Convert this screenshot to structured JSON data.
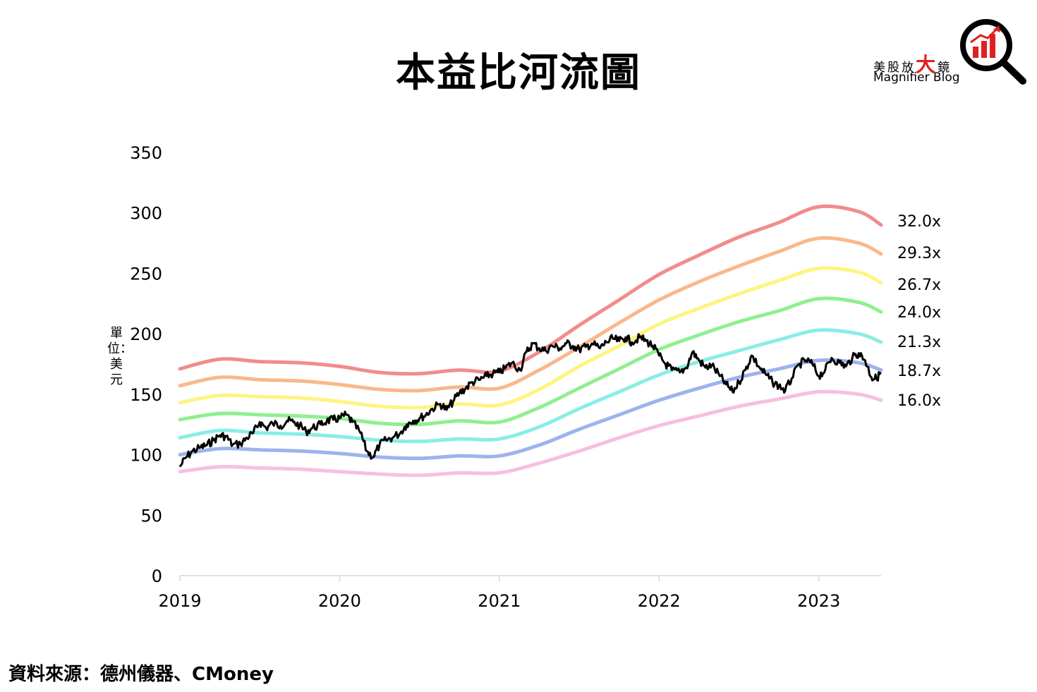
{
  "title": "本益比河流圖",
  "source": "資料來源：德州儀器、CMoney",
  "y_unit_label": "單位：美元",
  "logo": {
    "text_cn_parts": [
      "美股放",
      "大",
      "鏡"
    ],
    "text_en": "Magnifier Blog",
    "icon": "magnifier-bar-chart-icon",
    "accent_color": "#e02020"
  },
  "chart_data": {
    "type": "line",
    "title": "本益比河流圖",
    "ylabel": "單位：美元",
    "xlabel": "",
    "x_ticks": [
      "2019",
      "2020",
      "2021",
      "2022",
      "2023"
    ],
    "y_ticks": [
      0,
      50,
      100,
      150,
      200,
      250,
      300,
      350
    ],
    "ylim": [
      0,
      350
    ],
    "xlim": [
      2019.0,
      2023.39
    ],
    "grid": false,
    "bands": [
      {
        "name": "32.0x",
        "color": "#f28b8b",
        "points": [
          [
            2019.0,
            171
          ],
          [
            2019.25,
            179
          ],
          [
            2019.5,
            177
          ],
          [
            2019.75,
            176
          ],
          [
            2020.0,
            173
          ],
          [
            2020.25,
            168
          ],
          [
            2020.5,
            167
          ],
          [
            2020.75,
            170
          ],
          [
            2021.0,
            169
          ],
          [
            2021.25,
            185
          ],
          [
            2021.5,
            207
          ],
          [
            2021.75,
            228
          ],
          [
            2022.0,
            249
          ],
          [
            2022.25,
            265
          ],
          [
            2022.5,
            280
          ],
          [
            2022.75,
            292
          ],
          [
            2023.0,
            305
          ],
          [
            2023.25,
            301
          ],
          [
            2023.39,
            290
          ]
        ]
      },
      {
        "name": "29.3x",
        "color": "#f9b88b",
        "points": [
          [
            2019.0,
            157
          ],
          [
            2019.25,
            164
          ],
          [
            2019.5,
            162
          ],
          [
            2019.75,
            161
          ],
          [
            2020.0,
            158
          ],
          [
            2020.25,
            154
          ],
          [
            2020.5,
            153
          ],
          [
            2020.75,
            156
          ],
          [
            2021.0,
            155
          ],
          [
            2021.25,
            170
          ],
          [
            2021.5,
            189
          ],
          [
            2021.75,
            209
          ],
          [
            2022.0,
            228
          ],
          [
            2022.25,
            243
          ],
          [
            2022.5,
            256
          ],
          [
            2022.75,
            268
          ],
          [
            2023.0,
            279
          ],
          [
            2023.25,
            275
          ],
          [
            2023.39,
            266
          ]
        ]
      },
      {
        "name": "26.7x",
        "color": "#fdf57f",
        "points": [
          [
            2019.0,
            143
          ],
          [
            2019.25,
            149
          ],
          [
            2019.5,
            148
          ],
          [
            2019.75,
            147
          ],
          [
            2020.0,
            144
          ],
          [
            2020.25,
            140
          ],
          [
            2020.5,
            139
          ],
          [
            2020.75,
            142
          ],
          [
            2021.0,
            141
          ],
          [
            2021.25,
            154
          ],
          [
            2021.5,
            173
          ],
          [
            2021.75,
            190
          ],
          [
            2022.0,
            208
          ],
          [
            2022.25,
            221
          ],
          [
            2022.5,
            233
          ],
          [
            2022.75,
            244
          ],
          [
            2023.0,
            254
          ],
          [
            2023.25,
            251
          ],
          [
            2023.39,
            242
          ]
        ]
      },
      {
        "name": "24.0x",
        "color": "#8fef8f",
        "points": [
          [
            2019.0,
            129
          ],
          [
            2019.25,
            134
          ],
          [
            2019.5,
            133
          ],
          [
            2019.75,
            132
          ],
          [
            2020.0,
            130
          ],
          [
            2020.25,
            126
          ],
          [
            2020.5,
            125
          ],
          [
            2020.75,
            128
          ],
          [
            2021.0,
            127
          ],
          [
            2021.25,
            139
          ],
          [
            2021.5,
            155
          ],
          [
            2021.75,
            171
          ],
          [
            2022.0,
            187
          ],
          [
            2022.25,
            199
          ],
          [
            2022.5,
            210
          ],
          [
            2022.75,
            219
          ],
          [
            2023.0,
            229
          ],
          [
            2023.25,
            226
          ],
          [
            2023.39,
            218
          ]
        ]
      },
      {
        "name": "21.3x",
        "color": "#88eee6",
        "points": [
          [
            2019.0,
            114
          ],
          [
            2019.25,
            120
          ],
          [
            2019.5,
            118
          ],
          [
            2019.75,
            117
          ],
          [
            2020.0,
            115
          ],
          [
            2020.25,
            112
          ],
          [
            2020.5,
            111
          ],
          [
            2020.75,
            113
          ],
          [
            2021.0,
            113
          ],
          [
            2021.25,
            123
          ],
          [
            2021.5,
            138
          ],
          [
            2021.75,
            152
          ],
          [
            2022.0,
            166
          ],
          [
            2022.25,
            177
          ],
          [
            2022.5,
            186
          ],
          [
            2022.75,
            195
          ],
          [
            2023.0,
            203
          ],
          [
            2023.25,
            200
          ],
          [
            2023.39,
            193
          ]
        ]
      },
      {
        "name": "18.7x",
        "color": "#9db3ee",
        "points": [
          [
            2019.0,
            100
          ],
          [
            2019.25,
            105
          ],
          [
            2019.5,
            104
          ],
          [
            2019.75,
            103
          ],
          [
            2020.0,
            101
          ],
          [
            2020.25,
            98
          ],
          [
            2020.5,
            97
          ],
          [
            2020.75,
            99
          ],
          [
            2021.0,
            99
          ],
          [
            2021.25,
            108
          ],
          [
            2021.5,
            121
          ],
          [
            2021.75,
            133
          ],
          [
            2022.0,
            145
          ],
          [
            2022.25,
            155
          ],
          [
            2022.5,
            164
          ],
          [
            2022.75,
            171
          ],
          [
            2023.0,
            178
          ],
          [
            2023.25,
            176
          ],
          [
            2023.39,
            170
          ]
        ]
      },
      {
        "name": "16.0x",
        "color": "#f7bfe0",
        "points": [
          [
            2019.0,
            86
          ],
          [
            2019.25,
            90
          ],
          [
            2019.5,
            89
          ],
          [
            2019.75,
            88
          ],
          [
            2020.0,
            86
          ],
          [
            2020.25,
            84
          ],
          [
            2020.5,
            83
          ],
          [
            2020.75,
            85
          ],
          [
            2021.0,
            85
          ],
          [
            2021.25,
            93
          ],
          [
            2021.5,
            103
          ],
          [
            2021.75,
            114
          ],
          [
            2022.0,
            124
          ],
          [
            2022.25,
            132
          ],
          [
            2022.5,
            140
          ],
          [
            2022.75,
            146
          ],
          [
            2023.0,
            152
          ],
          [
            2023.25,
            150
          ],
          [
            2023.39,
            145
          ]
        ]
      }
    ],
    "price_series": {
      "color": "#000000",
      "points": [
        [
          2019.0,
          90
        ],
        [
          2019.04,
          98
        ],
        [
          2019.08,
          103
        ],
        [
          2019.13,
          106
        ],
        [
          2019.17,
          108
        ],
        [
          2019.21,
          112
        ],
        [
          2019.25,
          116
        ],
        [
          2019.29,
          115
        ],
        [
          2019.33,
          108
        ],
        [
          2019.38,
          109
        ],
        [
          2019.42,
          114
        ],
        [
          2019.46,
          118
        ],
        [
          2019.5,
          127
        ],
        [
          2019.54,
          122
        ],
        [
          2019.58,
          126
        ],
        [
          2019.63,
          124
        ],
        [
          2019.67,
          128
        ],
        [
          2019.71,
          127
        ],
        [
          2019.75,
          124
        ],
        [
          2019.79,
          119
        ],
        [
          2019.83,
          122
        ],
        [
          2019.88,
          125
        ],
        [
          2019.92,
          128
        ],
        [
          2019.96,
          129
        ],
        [
          2020.0,
          130
        ],
        [
          2020.04,
          133
        ],
        [
          2020.08,
          127
        ],
        [
          2020.13,
          118
        ],
        [
          2020.17,
          103
        ],
        [
          2020.21,
          98
        ],
        [
          2020.25,
          108
        ],
        [
          2020.29,
          112
        ],
        [
          2020.33,
          114
        ],
        [
          2020.38,
          118
        ],
        [
          2020.42,
          125
        ],
        [
          2020.46,
          128
        ],
        [
          2020.5,
          130
        ],
        [
          2020.54,
          133
        ],
        [
          2020.58,
          138
        ],
        [
          2020.63,
          142
        ],
        [
          2020.67,
          137
        ],
        [
          2020.71,
          144
        ],
        [
          2020.75,
          151
        ],
        [
          2020.79,
          155
        ],
        [
          2020.83,
          160
        ],
        [
          2020.88,
          162
        ],
        [
          2020.92,
          165
        ],
        [
          2020.96,
          167
        ],
        [
          2021.0,
          168
        ],
        [
          2021.04,
          172
        ],
        [
          2021.08,
          176
        ],
        [
          2021.13,
          170
        ],
        [
          2021.17,
          185
        ],
        [
          2021.21,
          192
        ],
        [
          2021.25,
          188
        ],
        [
          2021.29,
          186
        ],
        [
          2021.33,
          190
        ],
        [
          2021.38,
          188
        ],
        [
          2021.42,
          192
        ],
        [
          2021.46,
          190
        ],
        [
          2021.5,
          187
        ],
        [
          2021.54,
          189
        ],
        [
          2021.58,
          192
        ],
        [
          2021.63,
          188
        ],
        [
          2021.67,
          193
        ],
        [
          2021.71,
          196
        ],
        [
          2021.75,
          194
        ],
        [
          2021.79,
          197
        ],
        [
          2021.83,
          193
        ],
        [
          2021.88,
          197
        ],
        [
          2021.92,
          194
        ],
        [
          2021.96,
          190
        ],
        [
          2022.0,
          182
        ],
        [
          2022.04,
          175
        ],
        [
          2022.08,
          170
        ],
        [
          2022.13,
          168
        ],
        [
          2022.17,
          172
        ],
        [
          2022.21,
          185
        ],
        [
          2022.25,
          178
        ],
        [
          2022.29,
          172
        ],
        [
          2022.33,
          174
        ],
        [
          2022.38,
          165
        ],
        [
          2022.42,
          158
        ],
        [
          2022.46,
          152
        ],
        [
          2022.5,
          160
        ],
        [
          2022.54,
          170
        ],
        [
          2022.58,
          182
        ],
        [
          2022.63,
          172
        ],
        [
          2022.67,
          166
        ],
        [
          2022.71,
          160
        ],
        [
          2022.75,
          157
        ],
        [
          2022.79,
          153
        ],
        [
          2022.83,
          163
        ],
        [
          2022.88,
          175
        ],
        [
          2022.92,
          178
        ],
        [
          2022.96,
          175
        ],
        [
          2023.0,
          165
        ],
        [
          2023.04,
          170
        ],
        [
          2023.08,
          180
        ],
        [
          2023.13,
          176
        ],
        [
          2023.17,
          173
        ],
        [
          2023.21,
          180
        ],
        [
          2023.25,
          184
        ],
        [
          2023.29,
          178
        ],
        [
          2023.33,
          164
        ],
        [
          2023.36,
          163
        ],
        [
          2023.39,
          168
        ]
      ]
    }
  }
}
